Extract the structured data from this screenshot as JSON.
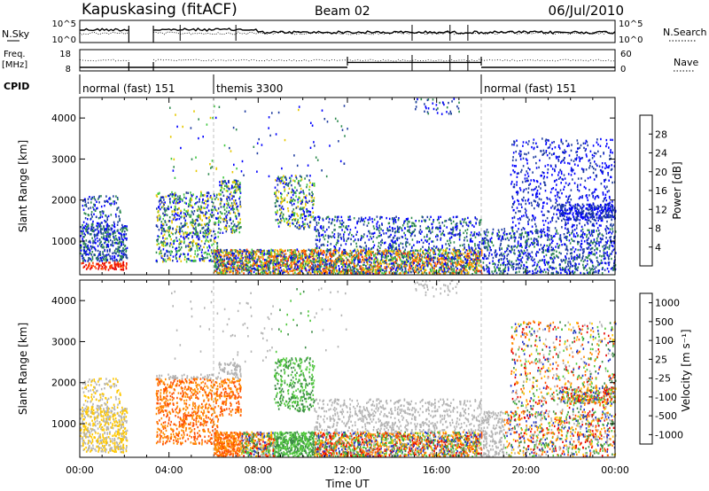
{
  "header": {
    "station": "Kapuskasing (fitACF)",
    "beam": "Beam 02",
    "date": "06/Jul/2010"
  },
  "left_labels": {
    "nsky": "N.Sky",
    "freq_line1": "Freq.",
    "freq_line2": "[MHz]",
    "cpid": "CPID"
  },
  "right_labels": {
    "nsearch": "N.Search",
    "nave": "Nave"
  },
  "noise_panel": {
    "left_ticks": [
      "10^5",
      "10^0"
    ],
    "right_ticks": [
      "10^5",
      "10^0"
    ]
  },
  "freq_panel": {
    "left_ticks": [
      "18",
      "8"
    ],
    "right_ticks": [
      "60",
      "0"
    ]
  },
  "cpid_segments": [
    {
      "label": "normal (fast) 151",
      "start_hour": 0.0,
      "end_hour": 6.0
    },
    {
      "label": "themis 3300",
      "start_hour": 6.0,
      "end_hour": 18.0
    },
    {
      "label": "normal (fast) 151",
      "start_hour": 18.0,
      "end_hour": 24.0
    }
  ],
  "x_axis": {
    "title": "Time UT",
    "ticks": [
      "00:00",
      "04:00",
      "08:00",
      "12:00",
      "16:00",
      "20:00",
      "00:00"
    ]
  },
  "power_panel": {
    "ylabel": "Slant Range [km]",
    "yticks": [
      "1000",
      "2000",
      "3000",
      "4000"
    ],
    "colorbar_label": "Power [dB]",
    "colorbar_ticks": [
      "4",
      "8",
      "12",
      "16",
      "20",
      "24",
      "28"
    ],
    "colors": [
      "#0000ff",
      "#1e3ca0",
      "#2d8a4e",
      "#40c840",
      "#e6c800",
      "#ff8c00",
      "#ff4000",
      "#e60000"
    ]
  },
  "velocity_panel": {
    "ylabel": "Slant Range [km]",
    "yticks": [
      "1000",
      "2000",
      "3000",
      "4000"
    ],
    "colorbar_label": "Velocity [m s⁻¹]",
    "colorbar_ticks": [
      "1000",
      "500",
      "100",
      "25",
      "-25",
      "-100",
      "-500",
      "-1000"
    ],
    "colors": [
      "#1e32c8",
      "#3c8c46",
      "#50c83c",
      "#b4b4b4",
      "#ffc800",
      "#ff8c00",
      "#ff5000",
      "#e60000"
    ]
  },
  "chart_data": {
    "type": "heatmap",
    "x_range_hours": [
      0,
      24
    ],
    "y_range_km": [
      180,
      4500
    ],
    "power_range_db": [
      0,
      30
    ],
    "velocity_range_ms": [
      -1000,
      1000
    ],
    "frequency_mhz": [
      {
        "start_hour": 0.0,
        "end_hour": 12.0,
        "value": 10.5
      },
      {
        "start_hour": 12.0,
        "end_hour": 18.0,
        "value": 14.0
      },
      {
        "start_hour": 18.0,
        "end_hour": 24.0,
        "value": 10.5
      }
    ],
    "data_gap_hours": [
      2.2,
      3.3
    ]
  }
}
